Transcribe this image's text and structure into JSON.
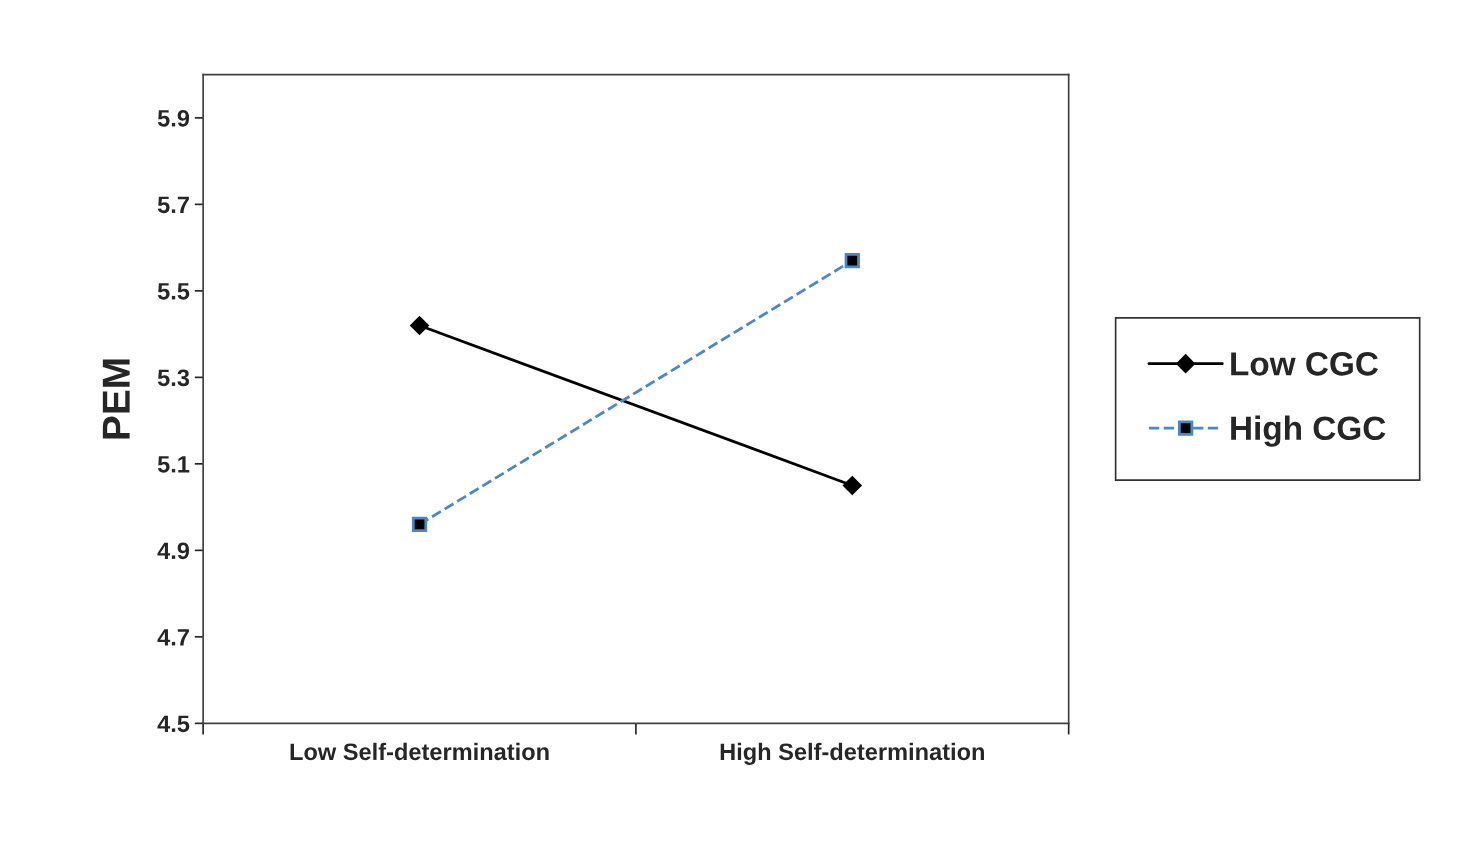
{
  "chart_data": {
    "type": "line",
    "ylabel": "PEM",
    "categories": [
      "Low Self-determination",
      "High Self-determination"
    ],
    "series": [
      {
        "name": "Low CGC",
        "color": "#000000",
        "values": [
          5.42,
          5.05
        ],
        "marker": "diamond",
        "line_style": "solid"
      },
      {
        "name": "High CGC",
        "color": "#4a86c8",
        "values": [
          4.96,
          5.57
        ],
        "marker": "square",
        "line_style": "dashed"
      }
    ],
    "ylim": [
      4.5,
      6.0
    ],
    "yticks": [
      4.5,
      4.7,
      4.9,
      5.1,
      5.3,
      5.5,
      5.7,
      5.9
    ],
    "grid": false,
    "legend": "right"
  }
}
